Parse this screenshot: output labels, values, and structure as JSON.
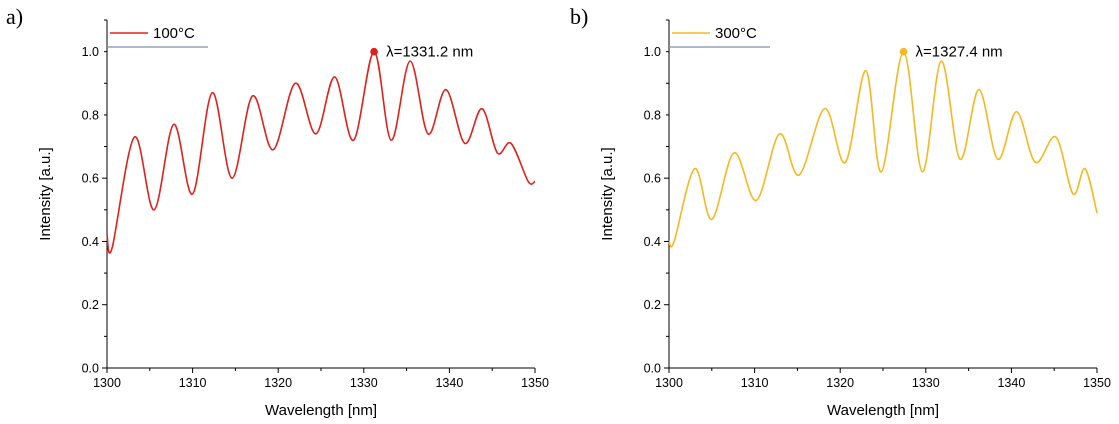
{
  "chart_data": [
    {
      "panel_label": "a)",
      "type": "line",
      "xlabel": "Wavelength [nm]",
      "ylabel": "Intensity [a.u.]",
      "xlim": [
        1300,
        1350
      ],
      "ylim": [
        0.0,
        1.1
      ],
      "xticks": [
        1300,
        1310,
        1320,
        1330,
        1340,
        1350
      ],
      "yticks": [
        "0.0",
        "0.2",
        "0.4",
        "0.6",
        "0.8",
        "1.0"
      ],
      "grid": false,
      "legend_position": "top-left",
      "color": "#e0201b",
      "series": [
        {
          "name": "100°C",
          "x": [
            1300.0,
            1300.6,
            1303.2,
            1305.5,
            1307.8,
            1310.0,
            1312.3,
            1314.6,
            1317.0,
            1319.4,
            1322.0,
            1324.4,
            1326.6,
            1328.8,
            1331.2,
            1333.2,
            1335.4,
            1337.5,
            1339.6,
            1341.8,
            1343.8,
            1345.6,
            1347.2,
            1349.2,
            1350.0
          ],
          "y": [
            0.42,
            0.38,
            0.73,
            0.5,
            0.77,
            0.55,
            0.87,
            0.6,
            0.86,
            0.69,
            0.9,
            0.74,
            0.92,
            0.72,
            1.0,
            0.72,
            0.97,
            0.74,
            0.88,
            0.71,
            0.82,
            0.68,
            0.71,
            0.59,
            0.59
          ]
        }
      ],
      "annotations": [
        {
          "text": "λ=1331.2 nm",
          "x": 1331.2,
          "y": 1.0
        }
      ]
    },
    {
      "panel_label": "b)",
      "type": "line",
      "xlabel": "Wavelength [nm]",
      "ylabel": "Intensity [a.u.]",
      "xlim": [
        1300,
        1350
      ],
      "ylim": [
        0.0,
        1.1
      ],
      "xticks": [
        1300,
        1310,
        1320,
        1330,
        1340,
        1350
      ],
      "yticks": [
        "0.0",
        "0.2",
        "0.4",
        "0.6",
        "0.8",
        "1.0"
      ],
      "grid": false,
      "legend_position": "top-left",
      "color": "#f5b821",
      "series": [
        {
          "name": "300°C",
          "x": [
            1300.0,
            1300.6,
            1303.0,
            1305.0,
            1307.6,
            1310.2,
            1312.9,
            1315.2,
            1318.2,
            1320.6,
            1323.0,
            1324.8,
            1327.4,
            1329.6,
            1331.8,
            1334.0,
            1336.2,
            1338.4,
            1340.6,
            1342.8,
            1345.2,
            1347.2,
            1348.6,
            1350.0
          ],
          "y": [
            0.4,
            0.4,
            0.63,
            0.47,
            0.68,
            0.53,
            0.74,
            0.61,
            0.82,
            0.65,
            0.94,
            0.62,
            1.0,
            0.62,
            0.97,
            0.66,
            0.88,
            0.66,
            0.81,
            0.65,
            0.73,
            0.55,
            0.63,
            0.49
          ]
        }
      ],
      "annotations": [
        {
          "text": "λ=1327.4 nm",
          "x": 1327.4,
          "y": 1.0
        }
      ]
    }
  ]
}
